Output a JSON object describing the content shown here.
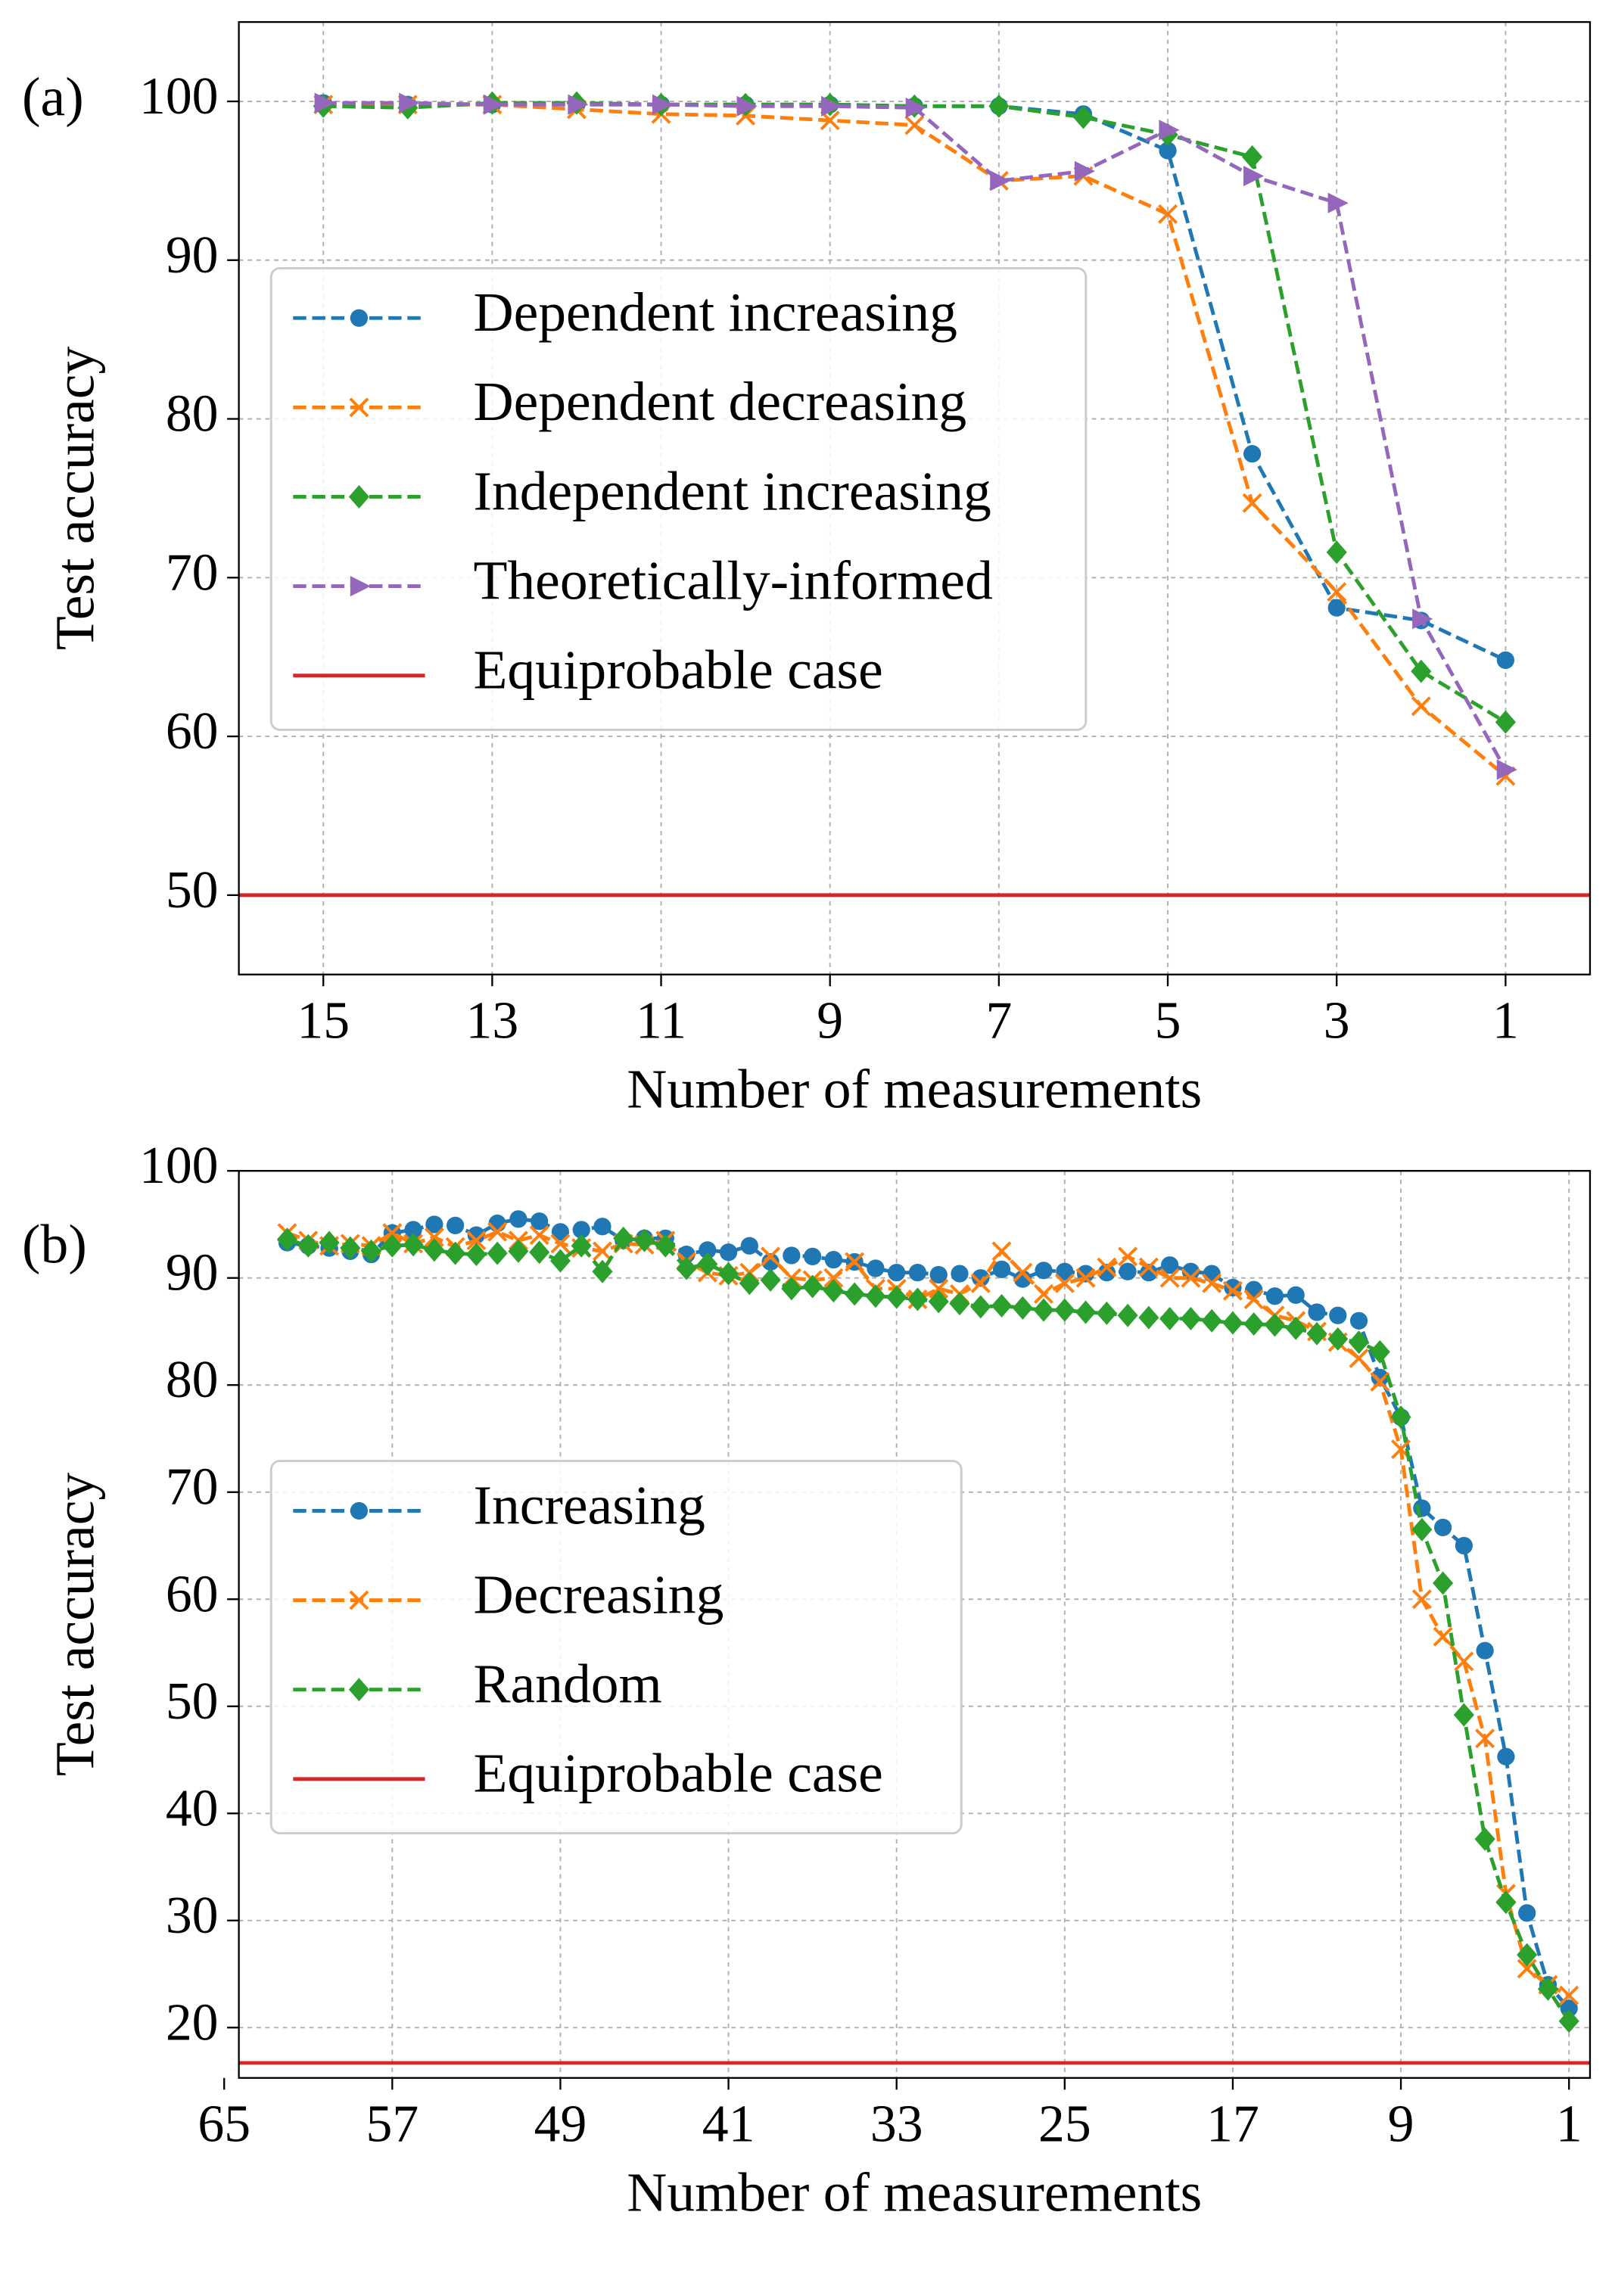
{
  "chart_data": [
    {
      "type": "line",
      "panel_label": "(a)",
      "xlabel": "Number of measurements",
      "ylabel": "Test accuracy",
      "x": [
        15,
        14,
        13,
        12,
        11,
        10,
        9,
        8,
        7,
        6,
        5,
        4,
        3,
        2,
        1
      ],
      "xlim": [
        16,
        0
      ],
      "xticks": [
        15,
        13,
        11,
        9,
        7,
        5,
        3,
        1
      ],
      "ylim": [
        45,
        105
      ],
      "yticks": [
        50,
        60,
        70,
        80,
        90,
        100
      ],
      "grid": true,
      "legend": "center left",
      "series": [
        {
          "name": "Dependent increasing",
          "color": "#1f77b4",
          "marker": "circle",
          "values": [
            99.9,
            99.8,
            99.8,
            99.8,
            99.8,
            99.8,
            99.8,
            99.7,
            99.7,
            99.2,
            96.9,
            77.8,
            68.1,
            67.3,
            64.8
          ]
        },
        {
          "name": "Dependent decreasing",
          "color": "#ff7f0e",
          "marker": "x",
          "values": [
            99.8,
            99.8,
            99.8,
            99.5,
            99.2,
            99.1,
            98.8,
            98.5,
            95.0,
            95.3,
            92.9,
            74.7,
            69.1,
            61.9,
            57.5
          ]
        },
        {
          "name": "Independent increasing",
          "color": "#2ca02c",
          "marker": "diamond",
          "values": [
            99.7,
            99.6,
            99.9,
            99.9,
            99.8,
            99.8,
            99.8,
            99.7,
            99.7,
            99.0,
            97.9,
            96.5,
            71.6,
            64.1,
            60.9
          ]
        },
        {
          "name": "Theoretically-informed",
          "color": "#9467bd",
          "marker": "triangle-right",
          "values": [
            99.9,
            99.9,
            99.8,
            99.8,
            99.8,
            99.7,
            99.7,
            99.6,
            95.0,
            95.6,
            98.2,
            95.3,
            93.6,
            67.4,
            57.9
          ]
        }
      ],
      "hline": {
        "name": "Equiprobable case",
        "color": "#d62728",
        "value": 50
      }
    },
    {
      "type": "line",
      "panel_label": "(b)",
      "xlabel": "Number of measurements",
      "ylabel": "Test accuracy",
      "x": [
        62,
        61,
        60,
        59,
        58,
        57,
        56,
        55,
        54,
        53,
        52,
        51,
        50,
        49,
        48,
        47,
        46,
        45,
        44,
        43,
        42,
        41,
        40,
        39,
        38,
        37,
        36,
        35,
        34,
        33,
        32,
        31,
        30,
        29,
        28,
        27,
        26,
        25,
        24,
        23,
        22,
        21,
        20,
        19,
        18,
        17,
        16,
        15,
        14,
        13,
        12,
        11,
        10,
        9,
        8,
        7,
        6,
        5,
        4,
        3,
        2,
        1
      ],
      "xlim": [
        64.3,
        0
      ],
      "xticks": [
        65,
        57,
        49,
        41,
        33,
        25,
        17,
        9,
        1
      ],
      "ylim": [
        15.3,
        100
      ],
      "yticks": [
        20,
        30,
        40,
        50,
        60,
        70,
        80,
        90,
        100
      ],
      "grid": true,
      "legend": "center left",
      "series": [
        {
          "name": "Increasing",
          "color": "#1f77b4",
          "marker": "circle",
          "values": [
            93.3,
            93.0,
            92.8,
            92.5,
            92.2,
            94.2,
            94.5,
            95.0,
            94.9,
            94.0,
            95.1,
            95.5,
            95.3,
            94.3,
            94.5,
            94.8,
            93.5,
            93.7,
            93.7,
            92.2,
            92.6,
            92.4,
            93.0,
            91.5,
            92.1,
            92.0,
            91.7,
            91.5,
            90.9,
            90.5,
            90.5,
            90.3,
            90.4,
            90.0,
            90.8,
            89.9,
            90.7,
            90.6,
            90.4,
            90.5,
            90.6,
            90.5,
            91.2,
            90.6,
            90.4,
            89.1,
            88.9,
            88.3,
            88.4,
            86.8,
            86.5,
            86.0,
            80.7,
            77.0,
            68.5,
            66.7,
            65.0,
            55.2,
            45.3,
            30.7,
            24.0,
            21.8
          ]
        },
        {
          "name": "Decreasing",
          "color": "#ff7f0e",
          "marker": "x",
          "values": [
            94.2,
            93.5,
            93.0,
            93.2,
            93.0,
            94.2,
            93.2,
            93.8,
            92.9,
            93.5,
            94.3,
            93.5,
            94.0,
            93.2,
            92.8,
            92.5,
            93.2,
            93.1,
            93.5,
            91.5,
            90.5,
            90.2,
            90.5,
            92.0,
            90.0,
            89.8,
            90.0,
            91.5,
            89.0,
            89.0,
            88.0,
            89.0,
            88.5,
            89.5,
            92.5,
            90.5,
            88.5,
            89.5,
            90.0,
            91.0,
            92.0,
            91.0,
            90.0,
            90.0,
            89.5,
            88.8,
            88.0,
            86.5,
            86.0,
            85.0,
            84.0,
            82.5,
            80.3,
            74.0,
            60.0,
            56.5,
            54.2,
            47.0,
            32.5,
            25.5,
            24.0,
            23.0
          ]
        },
        {
          "name": "Random",
          "color": "#2ca02c",
          "marker": "diamond",
          "values": [
            93.6,
            93.0,
            93.3,
            92.8,
            92.5,
            93.0,
            93.1,
            92.6,
            92.3,
            92.2,
            92.3,
            92.5,
            92.4,
            91.6,
            93.0,
            90.6,
            93.7,
            93.5,
            93.0,
            90.9,
            91.3,
            90.4,
            89.5,
            89.8,
            89.0,
            89.2,
            88.8,
            88.5,
            88.3,
            88.2,
            88.0,
            87.8,
            87.6,
            87.3,
            87.4,
            87.2,
            87.0,
            87.0,
            86.8,
            86.7,
            86.5,
            86.3,
            86.2,
            86.2,
            86.0,
            85.8,
            85.7,
            85.6,
            85.3,
            84.8,
            84.3,
            84.0,
            83.1,
            77.0,
            66.5,
            61.5,
            49.2,
            37.6,
            31.7,
            26.8,
            23.6,
            20.6
          ]
        }
      ],
      "hline": {
        "name": "Equiprobable case",
        "color": "#d62728",
        "value": 16.7
      }
    }
  ]
}
